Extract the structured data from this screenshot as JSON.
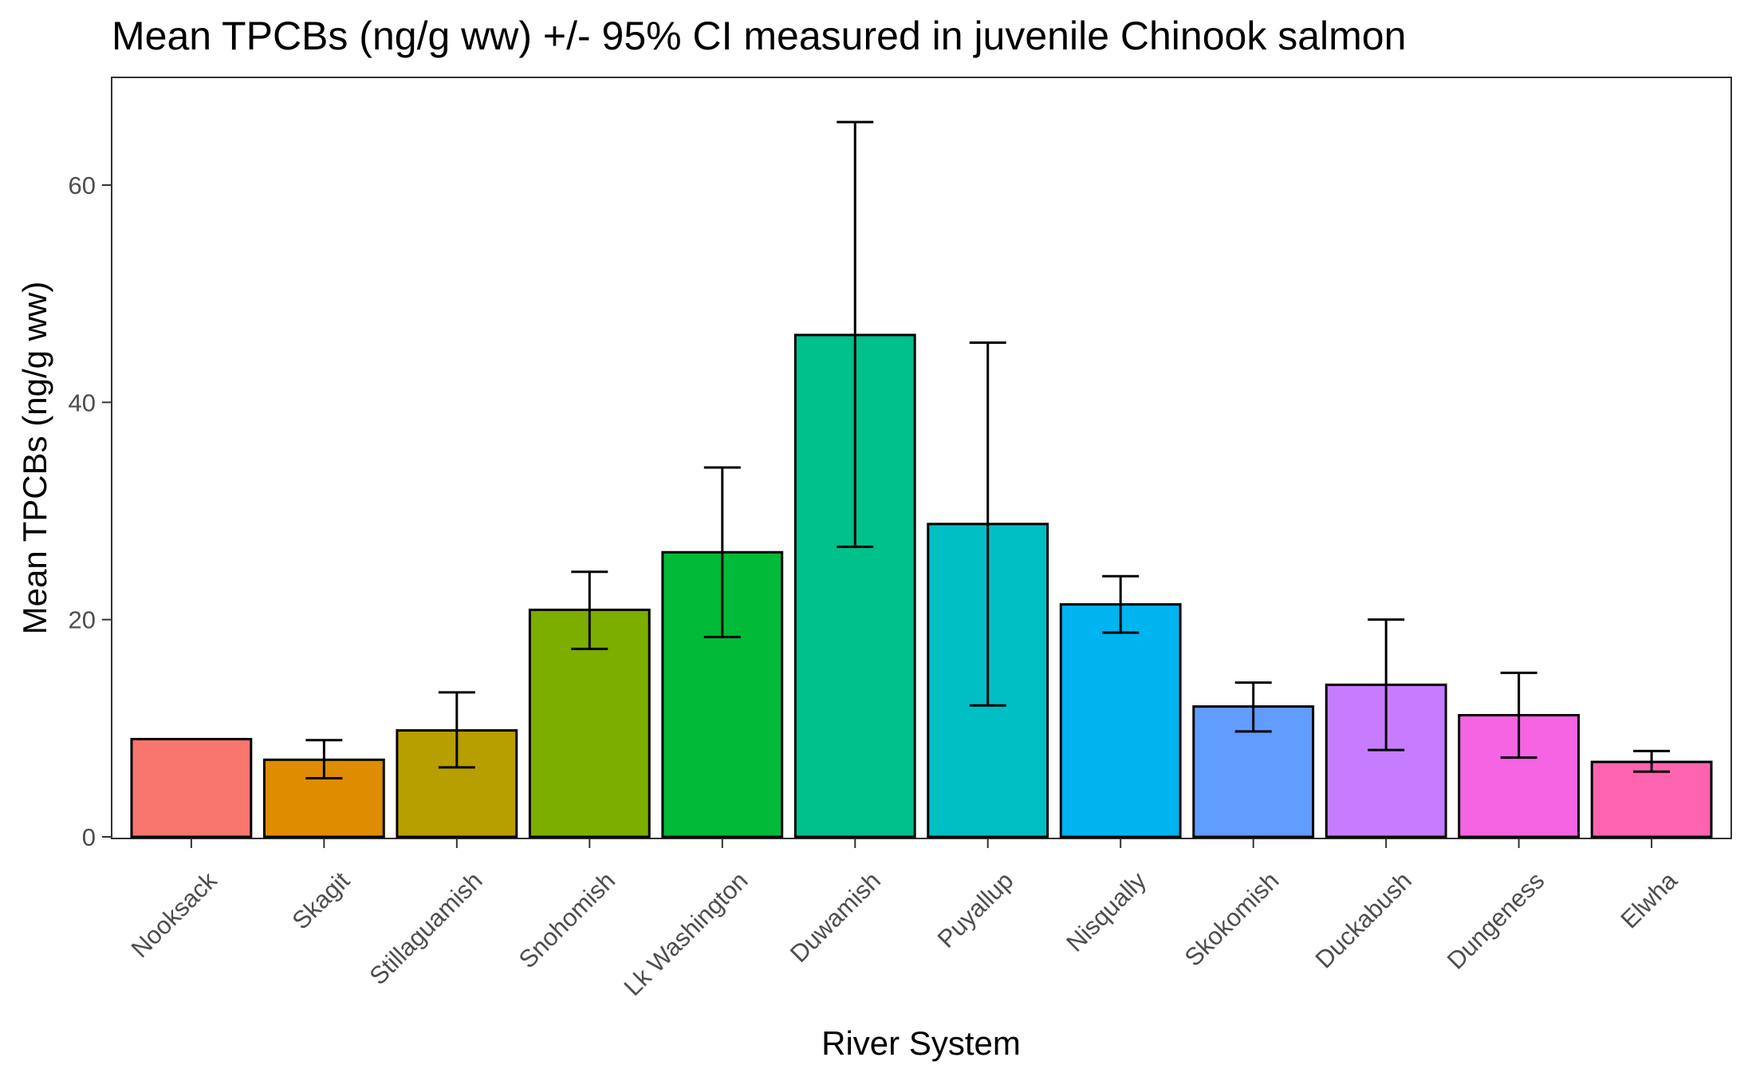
{
  "chart_data": {
    "type": "bar",
    "title": "Mean TPCBs (ng/g ww) +/- 95% CI measured in juvenile Chinook salmon",
    "xlabel": "River System",
    "ylabel": "Mean TPCBs (ng/g ww)",
    "ylim": [
      0,
      70
    ],
    "yticks": [
      0,
      20,
      40,
      60
    ],
    "grid": false,
    "legend": "none",
    "categories": [
      "Nooksack",
      "Skagit",
      "Stillaguamish",
      "Snohomish",
      "Lk Washington",
      "Duwamish",
      "Puyallup",
      "Nisqually",
      "Skokomish",
      "Duckabush",
      "Dungeness",
      "Elwha"
    ],
    "values": [
      9.0,
      7.1,
      9.8,
      20.9,
      26.2,
      46.2,
      28.8,
      21.4,
      12.0,
      14.0,
      11.2,
      6.9
    ],
    "ci_lower": [
      null,
      5.4,
      6.4,
      17.3,
      18.4,
      26.7,
      12.1,
      18.8,
      9.7,
      8.0,
      7.3,
      6.0
    ],
    "ci_upper": [
      null,
      8.9,
      13.3,
      24.4,
      34.0,
      65.8,
      45.5,
      24.0,
      14.2,
      20.0,
      15.1,
      7.9
    ],
    "colors": [
      "#F8766D",
      "#DE8C00",
      "#B79F00",
      "#7CAE00",
      "#00BA38",
      "#00C08B",
      "#00BFC4",
      "#00B4F0",
      "#619CFF",
      "#C77CFF",
      "#F564E3",
      "#FF64B0"
    ]
  }
}
